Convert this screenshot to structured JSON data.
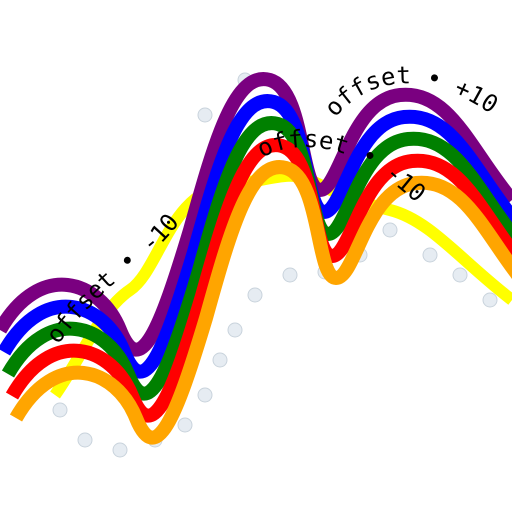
{
  "bands": [
    {
      "name": "purple",
      "color": "#7a0080"
    },
    {
      "name": "blue",
      "color": "#0000ff"
    },
    {
      "name": "green",
      "color": "#008000"
    },
    {
      "name": "red",
      "color": "#ff0000"
    },
    {
      "name": "orange",
      "color": "#ffa500"
    }
  ],
  "highlight_color": "#ffff00",
  "labels": {
    "upper_right": "offset • +10",
    "middle": "offset • -10",
    "left": "offset • -10"
  }
}
